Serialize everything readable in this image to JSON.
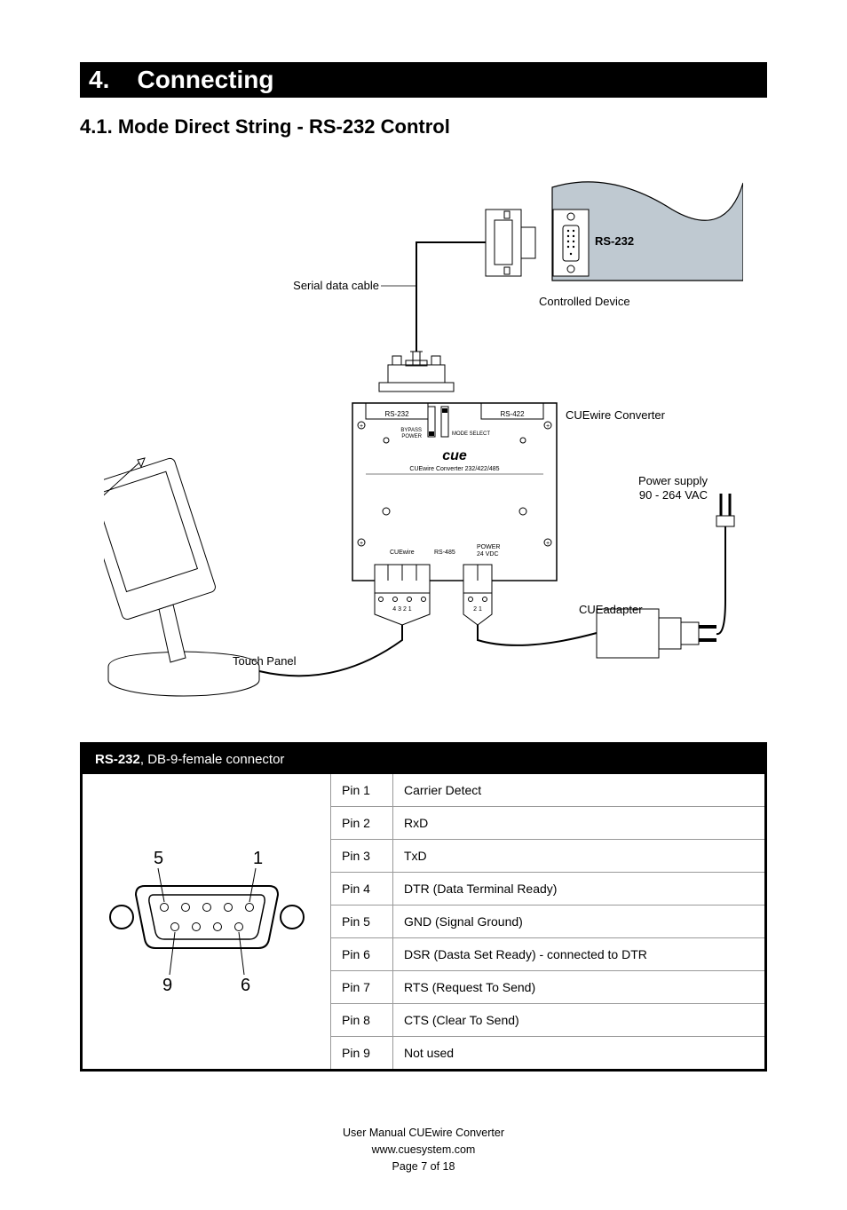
{
  "section": {
    "number": "4.",
    "title": "Connecting"
  },
  "subsection": {
    "number": "4.1.",
    "title": "Mode Direct String - RS-232 Control"
  },
  "diagram": {
    "labels": {
      "serial_cable": "Serial data cable",
      "rs232_port": "RS-232",
      "controlled_device": "Controlled Device",
      "cuewire_converter": "CUEwire Converter",
      "touch_panel": "Touch Panel",
      "power_supply_1": "Power supply",
      "power_supply_2": "90 - 264 VAC",
      "cueadapter": "CUEadapter",
      "conv_rs232": "RS-232",
      "conv_rs422": "RS-422",
      "conv_bypass": "BYPASS",
      "conv_power": "POWER",
      "conv_modeselect": "MODE SELECT",
      "conv_brand": "cue",
      "conv_model": "CUEwire Converter 232/422/485",
      "conv_cuewire": "CUEwire",
      "conv_rs485": "RS-485",
      "conv_power24": "POWER",
      "conv_24vdc": "24 VDC",
      "term_4321": "4 3 2 1",
      "term_21": "2 1"
    },
    "colors": {
      "stroke": "#000000",
      "fill_grey": "#bfc9d1",
      "fill_white": "#ffffff",
      "text": "#000000"
    }
  },
  "connector_table": {
    "header_bold": "RS-232",
    "header_rest": ", DB-9-female connector",
    "diagram_labels": {
      "tl": "5",
      "tr": "1",
      "bl": "9",
      "br": "6"
    },
    "rows": [
      {
        "pin": "Pin 1",
        "desc": "Carrier Detect"
      },
      {
        "pin": "Pin 2",
        "desc": "RxD"
      },
      {
        "pin": "Pin 3",
        "desc": "TxD"
      },
      {
        "pin": "Pin 4",
        "desc": "DTR  (Data Terminal Ready)"
      },
      {
        "pin": "Pin 5",
        "desc": "GND  (Signal Ground)"
      },
      {
        "pin": "Pin 6",
        "desc": "DSR  (Dasta Set Ready) - connected to DTR"
      },
      {
        "pin": "Pin 7",
        "desc": "RTS  (Request To Send)"
      },
      {
        "pin": "Pin 8",
        "desc": "CTS  (Clear To Send)"
      },
      {
        "pin": "Pin 9",
        "desc": "Not used"
      }
    ]
  },
  "footer": {
    "line1": "User Manual CUEwire Converter",
    "line2": "www.cuesystem.com",
    "line3": "Page 7 of 18"
  }
}
